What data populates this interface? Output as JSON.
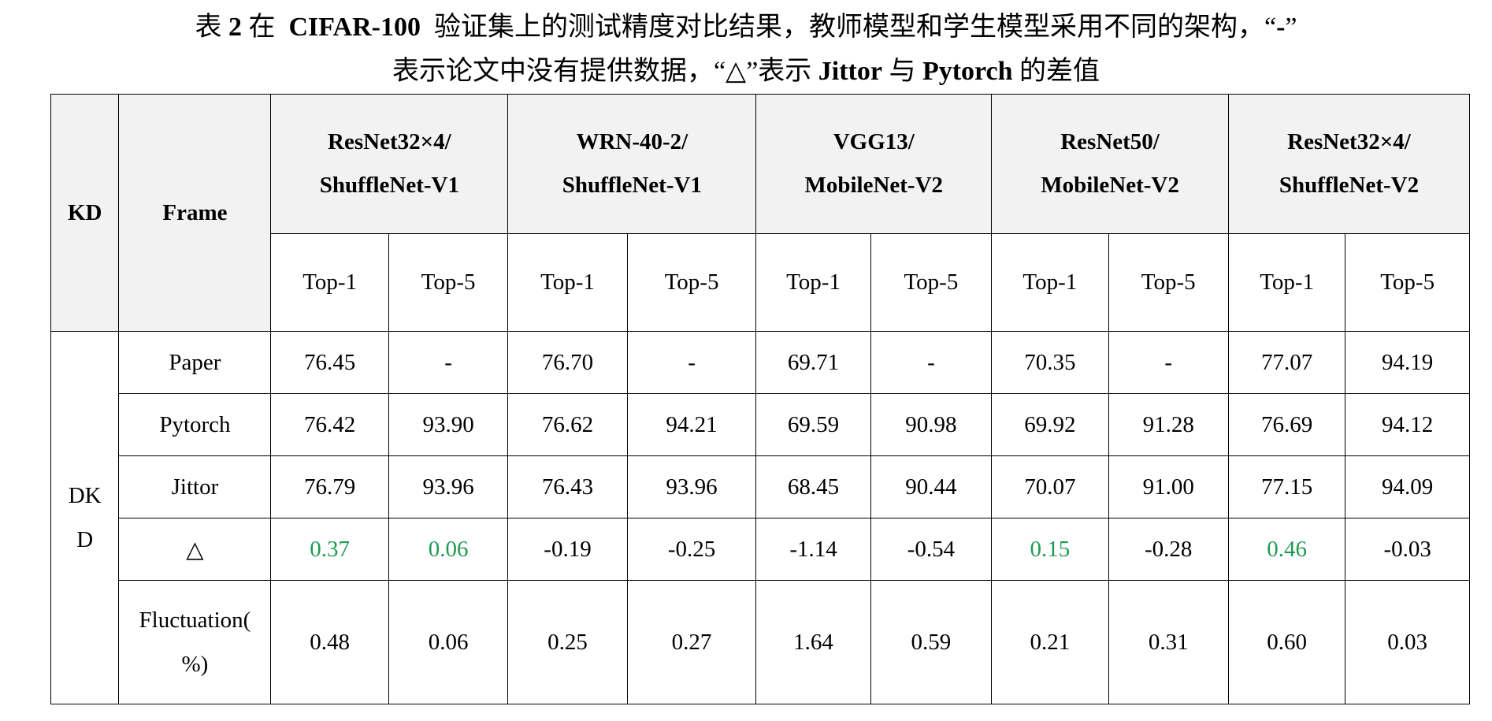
{
  "caption": {
    "line1_prefix": "表",
    "line1_num": "2",
    "line1_a": "在",
    "line1_dataset": "CIFAR-100",
    "line1_rest": "验证集上的测试精度对比结果，教师模型和学生模型采用不同的架构，“",
    "line1_dash": "-",
    "line1_end": "”",
    "line2_a": "表示论文中没有提供数据，“△”表示",
    "line2_jittor": "Jittor",
    "line2_b": "与",
    "line2_pytorch": "Pytorch",
    "line2_c": "的差值"
  },
  "table": {
    "kd_header": "KD",
    "frame_header": "Frame",
    "models": [
      {
        "line1": "ResNet32×4/",
        "line2": "ShuffleNet-V1"
      },
      {
        "line1": "WRN-40-2/",
        "line2": "ShuffleNet-V1"
      },
      {
        "line1": "VGG13/",
        "line2": "MobileNet-V2"
      },
      {
        "line1": "ResNet50/",
        "line2": "MobileNet-V2"
      },
      {
        "line1": "ResNet32×4/",
        "line2": "ShuffleNet-V2"
      }
    ],
    "metrics": [
      "Top-1",
      "Top-5",
      "Top-1",
      "Top-5",
      "Top-1",
      "Top-5",
      "Top-1",
      "Top-5",
      "Top-1",
      "Top-5"
    ],
    "kd_method_line1": "DK",
    "kd_method_line2": "D",
    "rows": [
      {
        "frame": "Paper",
        "values": [
          "76.45",
          "-",
          "76.70",
          "-",
          "69.71",
          "-",
          "70.35",
          "-",
          "77.07",
          "94.19"
        ]
      },
      {
        "frame": "Pytorch",
        "values": [
          "76.42",
          "93.90",
          "76.62",
          "94.21",
          "69.59",
          "90.98",
          "69.92",
          "91.28",
          "76.69",
          "94.12"
        ]
      },
      {
        "frame": "Jittor",
        "values": [
          "76.79",
          "93.96",
          "76.43",
          "93.96",
          "68.45",
          "90.44",
          "70.07",
          "91.00",
          "77.15",
          "94.09"
        ]
      },
      {
        "frame": "△",
        "values": [
          "0.37",
          "0.06",
          "-0.19",
          "-0.25",
          "-1.14",
          "-0.54",
          "0.15",
          "-0.28",
          "0.46",
          "-0.03"
        ]
      }
    ],
    "fluctuation": {
      "label_line1": "Fluctuation(",
      "label_line2": "%)",
      "values": [
        "0.48",
        "0.06",
        "0.25",
        "0.27",
        "1.64",
        "0.59",
        "0.21",
        "0.31",
        "0.60",
        "0.03"
      ]
    },
    "positive_delta_color": "#1e9a52"
  }
}
